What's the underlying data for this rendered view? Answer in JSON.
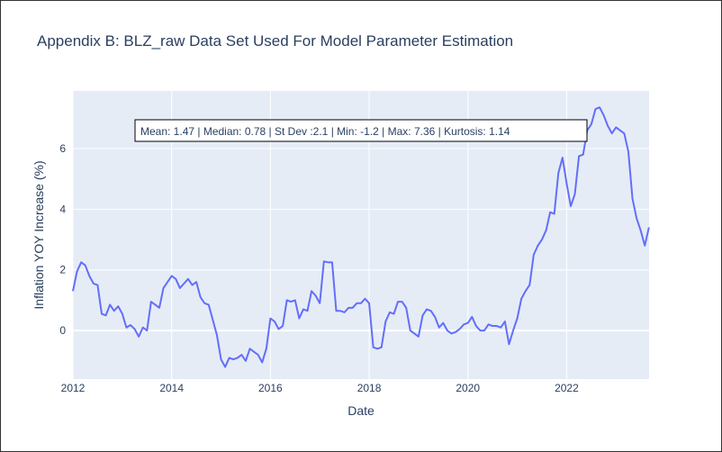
{
  "chart_data": {
    "type": "line",
    "title": "Appendix B: BLZ_raw Data Set Used For Model Parameter Estimation",
    "xlabel": "Date",
    "ylabel": "Inflation YOY Increase (%)",
    "xlim": [
      2012.0,
      2023.67
    ],
    "ylim": [
      -1.6,
      7.9
    ],
    "x_ticks": [
      2012,
      2014,
      2016,
      2018,
      2020,
      2022
    ],
    "y_ticks": [
      0,
      2,
      4,
      6
    ],
    "grid": true,
    "line_color": "#636efa",
    "plot_bg": "#e5ecf6",
    "annotation": "Mean: 1.47 | Median: 0.78 | St Dev :2.1 | Min: -1.2 | Max: 7.36 | Kurtosis: 1.14",
    "series": [
      {
        "x": [
          "2012-01",
          "2012-02",
          "2012-03",
          "2012-04",
          "2012-05",
          "2012-06",
          "2012-07",
          "2012-08",
          "2012-09",
          "2012-10",
          "2012-11",
          "2012-12",
          "2013-01",
          "2013-02",
          "2013-03",
          "2013-04",
          "2013-05",
          "2013-06",
          "2013-07",
          "2013-08",
          "2013-09",
          "2013-10",
          "2013-11",
          "2013-12",
          "2014-01",
          "2014-02",
          "2014-03",
          "2014-04",
          "2014-05",
          "2014-06",
          "2014-07",
          "2014-08",
          "2014-09",
          "2014-10",
          "2014-11",
          "2014-12",
          "2015-01",
          "2015-02",
          "2015-03",
          "2015-04",
          "2015-05",
          "2015-06",
          "2015-07",
          "2015-08",
          "2015-09",
          "2015-10",
          "2015-11",
          "2015-12",
          "2016-01",
          "2016-02",
          "2016-03",
          "2016-04",
          "2016-05",
          "2016-06",
          "2016-07",
          "2016-08",
          "2016-09",
          "2016-10",
          "2016-11",
          "2016-12",
          "2017-01",
          "2017-02",
          "2017-03",
          "2017-04",
          "2017-05",
          "2017-06",
          "2017-07",
          "2017-08",
          "2017-09",
          "2017-10",
          "2017-11",
          "2017-12",
          "2018-01",
          "2018-02",
          "2018-03",
          "2018-04",
          "2018-05",
          "2018-06",
          "2018-07",
          "2018-08",
          "2018-09",
          "2018-10",
          "2018-11",
          "2018-12",
          "2019-01",
          "2019-02",
          "2019-03",
          "2019-04",
          "2019-05",
          "2019-06",
          "2019-07",
          "2019-08",
          "2019-09",
          "2019-10",
          "2019-11",
          "2019-12",
          "2020-01",
          "2020-02",
          "2020-03",
          "2020-04",
          "2020-05",
          "2020-06",
          "2020-07",
          "2020-08",
          "2020-09",
          "2020-10",
          "2020-11",
          "2020-12",
          "2021-01",
          "2021-02",
          "2021-03",
          "2021-04",
          "2021-05",
          "2021-06",
          "2021-07",
          "2021-08",
          "2021-09",
          "2021-10",
          "2021-11",
          "2021-12",
          "2022-01",
          "2022-02",
          "2022-03",
          "2022-04",
          "2022-05",
          "2022-06",
          "2022-07",
          "2022-08",
          "2022-09",
          "2022-10",
          "2022-11",
          "2022-12",
          "2023-01",
          "2023-02",
          "2023-03",
          "2023-04",
          "2023-05",
          "2023-06",
          "2023-07",
          "2023-08",
          "2023-09"
        ],
        "values": [
          1.3,
          1.95,
          2.25,
          2.15,
          1.8,
          1.55,
          1.5,
          0.55,
          0.5,
          0.85,
          0.65,
          0.8,
          0.55,
          0.1,
          0.18,
          0.05,
          -0.2,
          0.1,
          0.0,
          0.95,
          0.85,
          0.75,
          1.4,
          1.6,
          1.8,
          1.7,
          1.4,
          1.55,
          1.7,
          1.5,
          1.6,
          1.1,
          0.9,
          0.85,
          0.35,
          -0.15,
          -0.95,
          -1.2,
          -0.9,
          -0.95,
          -0.9,
          -0.8,
          -1.0,
          -0.6,
          -0.7,
          -0.8,
          -1.05,
          -0.6,
          0.4,
          0.3,
          0.05,
          0.15,
          1.0,
          0.95,
          1.0,
          0.4,
          0.7,
          0.65,
          1.3,
          1.15,
          0.9,
          2.28,
          2.25,
          2.25,
          0.65,
          0.65,
          0.6,
          0.75,
          0.75,
          0.9,
          0.9,
          1.05,
          0.9,
          -0.55,
          -0.6,
          -0.55,
          0.3,
          0.6,
          0.55,
          0.95,
          0.95,
          0.75,
          0.0,
          -0.1,
          -0.2,
          0.5,
          0.7,
          0.65,
          0.45,
          0.1,
          0.25,
          0.0,
          -0.1,
          -0.05,
          0.05,
          0.2,
          0.25,
          0.45,
          0.15,
          0.0,
          0.0,
          0.2,
          0.15,
          0.15,
          0.1,
          0.3,
          -0.45,
          0.0,
          0.4,
          1.05,
          1.3,
          1.5,
          2.5,
          2.8,
          3.0,
          3.3,
          3.9,
          3.85,
          5.2,
          5.7,
          4.85,
          4.1,
          4.5,
          5.75,
          5.8,
          6.6,
          6.8,
          7.3,
          7.36,
          7.1,
          6.75,
          6.5,
          6.7,
          6.6,
          6.5,
          5.9,
          4.35,
          3.7,
          3.3,
          2.8,
          3.4
        ]
      }
    ]
  }
}
